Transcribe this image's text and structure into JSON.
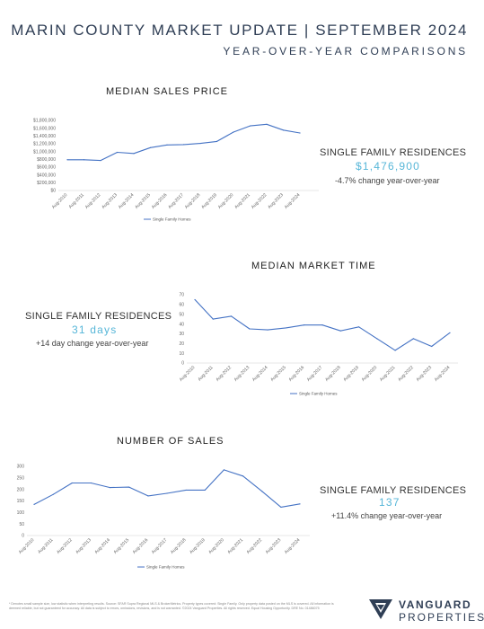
{
  "header": {
    "title": "MARIN COUNTY MARKET UPDATE | SEPTEMBER 2024",
    "subtitle": "YEAR-OVER-YEAR COMPARISONS"
  },
  "colors": {
    "series": "#4472c4",
    "accent": "#56b6d8",
    "header": "#2f3e55"
  },
  "sections": [
    {
      "title": "MEDIAN SALES PRICE",
      "stat_label": "SINGLE FAMILY RESIDENCES",
      "stat_value": "$1,476,900",
      "stat_change": "-4.7% change year-over-year"
    },
    {
      "title": "MEDIAN MARKET TIME",
      "stat_label": "SINGLE FAMILY RESIDENCES",
      "stat_value": "31 days",
      "stat_change": "+14 day change year-over-year"
    },
    {
      "title": "NUMBER OF SALES",
      "stat_label": "SINGLE FAMILY RESIDENCES",
      "stat_value": "137",
      "stat_change": "+11.4% change year-over-year"
    }
  ],
  "chart_data": [
    {
      "type": "line",
      "title": "MEDIAN SALES PRICE",
      "categories": [
        "Aug-2010",
        "Aug-2011",
        "Aug-2012",
        "Aug-2013",
        "Aug-2014",
        "Aug-2015",
        "Aug-2016",
        "Aug-2017",
        "Aug-2018",
        "Aug-2019",
        "Aug-2020",
        "Aug-2021",
        "Aug-2022",
        "Aug-2023",
        "Aug-2024"
      ],
      "series": [
        {
          "name": "Single Family Homes",
          "values": [
            790000,
            790000,
            770000,
            980000,
            950000,
            1100000,
            1170000,
            1180000,
            1210000,
            1260000,
            1500000,
            1660000,
            1700000,
            1550000,
            1476900
          ]
        }
      ],
      "ylim": [
        0,
        1800000
      ],
      "yticks": [
        "$0",
        "$200,000",
        "$400,000",
        "$600,000",
        "$800,000",
        "$1,000,000",
        "$1,200,000",
        "$1,400,000",
        "$1,600,000",
        "$1,800,000"
      ],
      "grid": false,
      "legend": "bottom"
    },
    {
      "type": "line",
      "title": "MEDIAN MARKET TIME",
      "categories": [
        "Aug-2010",
        "Aug-2011",
        "Aug-2012",
        "Aug-2013",
        "Aug-2014",
        "Aug-2015",
        "Aug-2016",
        "Aug-2017",
        "Aug-2018",
        "Aug-2019",
        "Aug-2020",
        "Aug-2021",
        "Aug-2022",
        "Aug-2023",
        "Aug-2024"
      ],
      "series": [
        {
          "name": "Single Family Homes",
          "values": [
            65,
            45,
            48,
            35,
            34,
            36,
            39,
            39,
            33,
            37,
            25,
            13,
            25,
            17,
            31
          ]
        }
      ],
      "ylim": [
        0,
        70
      ],
      "yticks": [
        "0",
        "10",
        "20",
        "30",
        "40",
        "50",
        "60",
        "70"
      ],
      "grid": false,
      "legend": "bottom"
    },
    {
      "type": "line",
      "title": "NUMBER OF SALES",
      "categories": [
        "Aug-2010",
        "Aug-2011",
        "Aug-2012",
        "Aug-2013",
        "Aug-2014",
        "Aug-2015",
        "Aug-2016",
        "Aug-2017",
        "Aug-2018",
        "Aug-2019",
        "Aug-2020",
        "Aug-2021",
        "Aug-2022",
        "Aug-2023",
        "Aug-2024"
      ],
      "series": [
        {
          "name": "Single Family Homes",
          "values": [
            135,
            178,
            228,
            228,
            208,
            210,
            172,
            183,
            197,
            197,
            285,
            258,
            192,
            123,
            137
          ]
        }
      ],
      "ylim": [
        0,
        300
      ],
      "yticks": [
        "0",
        "50",
        "100",
        "150",
        "200",
        "250",
        "300"
      ],
      "grid": false,
      "legend": "bottom"
    }
  ],
  "footer": {
    "disclaimer": "* Denotes small sample size, low statistic when interpreting results. Source: SFAR Supra Regional MLS & BrokerMetrics. Property types covered: Single Family. Only property data posted on the MLS is covered. All information is deemed reliable, but not guaranteed for accuracy. All data is subject to errors, omissions, revisions, and is not warranted. ©2024 Vanguard Properties. All rights reserved. Equal Housing Opportunity. DRE No. 01486075"
  },
  "logo": {
    "line1": "VANGUARD",
    "line2": "PROPERTIES",
    "icon": "vanguard-v-logo-icon"
  }
}
